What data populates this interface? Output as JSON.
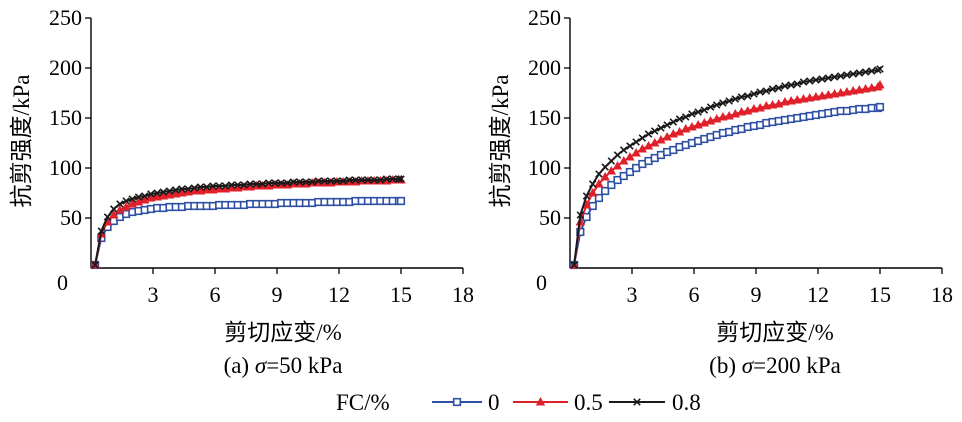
{
  "colors": {
    "fc_0": "#2e4fa3",
    "fc_0_5": "#e0202a",
    "fc_0_8": "#1a1a1a",
    "axis": "#000000"
  },
  "legend": {
    "title": "FC/%",
    "entries": [
      {
        "label": "0",
        "marker": "square-open",
        "color": "#2e4fa3"
      },
      {
        "label": "0.5",
        "marker": "triangle-filled",
        "color": "#e0202a"
      },
      {
        "label": "0.8",
        "marker": "x-cross",
        "color": "#1a1a1a"
      }
    ],
    "placement": "bottom-center"
  },
  "chart_data": [
    {
      "type": "line",
      "caption_prefix": "(a) ",
      "caption_sigma": "σ",
      "caption_suffix": "=50 kPa",
      "xlabel": "剪切应变/%",
      "ylabel": "抗剪强度/kPa",
      "xlim": [
        0,
        18
      ],
      "ylim": [
        0,
        250
      ],
      "xticks": [
        3,
        6,
        9,
        12,
        15,
        18
      ],
      "yticks": [
        50,
        100,
        150,
        200,
        250
      ],
      "origin_label": "0",
      "grid": false,
      "series": [
        {
          "name": "0",
          "x": [
            0.2,
            0.5,
            0.8,
            1.1,
            1.4,
            1.7,
            2.0,
            2.3,
            2.6,
            2.9,
            3.2,
            3.5,
            3.8,
            4.1,
            4.4,
            4.7,
            5.0,
            5.3,
            5.6,
            5.9,
            6.2,
            6.5,
            6.8,
            7.1,
            7.4,
            7.7,
            8.0,
            8.3,
            8.6,
            8.9,
            9.2,
            9.5,
            9.8,
            10.1,
            10.4,
            10.7,
            11.0,
            11.3,
            11.6,
            11.9,
            12.2,
            12.5,
            12.8,
            13.1,
            13.4,
            13.7,
            14.0,
            14.3,
            14.6,
            14.9,
            15.0
          ],
          "y": [
            3,
            30,
            41,
            47,
            51,
            54,
            56,
            57,
            58,
            59,
            60,
            60,
            61,
            61,
            61,
            62,
            62,
            62,
            62,
            62,
            63,
            63,
            63,
            63,
            63,
            64,
            64,
            64,
            64,
            64,
            65,
            65,
            65,
            65,
            65,
            65,
            66,
            66,
            66,
            66,
            66,
            66,
            67,
            67,
            67,
            67,
            67,
            67,
            67,
            67,
            67
          ]
        },
        {
          "name": "0.5",
          "x": [
            0.2,
            0.5,
            0.8,
            1.1,
            1.4,
            1.7,
            2.0,
            2.3,
            2.6,
            2.9,
            3.2,
            3.5,
            3.8,
            4.1,
            4.4,
            4.7,
            5.0,
            5.3,
            5.6,
            5.9,
            6.2,
            6.5,
            6.8,
            7.1,
            7.4,
            7.7,
            8.0,
            8.3,
            8.6,
            8.9,
            9.2,
            9.5,
            9.8,
            10.1,
            10.4,
            10.7,
            11.0,
            11.3,
            11.6,
            11.9,
            12.2,
            12.5,
            12.8,
            13.1,
            13.4,
            13.7,
            14.0,
            14.3,
            14.6,
            14.9,
            15.0
          ],
          "y": [
            3,
            34,
            46,
            53,
            58,
            61,
            64,
            66,
            68,
            70,
            71,
            72,
            73,
            74,
            75,
            76,
            77,
            77,
            78,
            78,
            79,
            79,
            80,
            80,
            81,
            81,
            82,
            82,
            82,
            83,
            83,
            83,
            84,
            84,
            84,
            85,
            85,
            85,
            85,
            86,
            86,
            86,
            86,
            87,
            87,
            87,
            87,
            87,
            88,
            88,
            88
          ]
        },
        {
          "name": "0.8",
          "x": [
            0.2,
            0.5,
            0.8,
            1.1,
            1.4,
            1.7,
            2.0,
            2.3,
            2.6,
            2.9,
            3.2,
            3.5,
            3.8,
            4.1,
            4.4,
            4.7,
            5.0,
            5.3,
            5.6,
            5.9,
            6.2,
            6.5,
            6.8,
            7.1,
            7.4,
            7.7,
            8.0,
            8.3,
            8.6,
            8.9,
            9.2,
            9.5,
            9.8,
            10.1,
            10.4,
            10.7,
            11.0,
            11.3,
            11.6,
            11.9,
            12.2,
            12.5,
            12.8,
            13.1,
            13.4,
            13.7,
            14.0,
            14.3,
            14.6,
            14.9,
            15.0
          ],
          "y": [
            3,
            37,
            51,
            59,
            64,
            67,
            69,
            71,
            72,
            74,
            75,
            76,
            77,
            78,
            79,
            79,
            80,
            81,
            81,
            82,
            82,
            82,
            83,
            83,
            83,
            84,
            84,
            84,
            85,
            85,
            85,
            85,
            86,
            86,
            86,
            86,
            87,
            87,
            87,
            87,
            87,
            88,
            88,
            88,
            88,
            88,
            88,
            89,
            89,
            89,
            89
          ]
        }
      ]
    },
    {
      "type": "line",
      "caption_prefix": "(b) ",
      "caption_sigma": "σ",
      "caption_suffix": "=200 kPa",
      "xlabel": "剪切应变/%",
      "ylabel": "抗剪强度/kPa",
      "xlim": [
        0,
        18
      ],
      "ylim": [
        0,
        250
      ],
      "xticks": [
        3,
        6,
        9,
        12,
        15,
        18
      ],
      "yticks": [
        50,
        100,
        150,
        200,
        250
      ],
      "origin_label": "0",
      "grid": false,
      "series": [
        {
          "name": "0",
          "x": [
            0.2,
            0.5,
            0.8,
            1.1,
            1.4,
            1.7,
            2.0,
            2.3,
            2.6,
            2.9,
            3.2,
            3.5,
            3.8,
            4.1,
            4.4,
            4.7,
            5.0,
            5.3,
            5.6,
            5.9,
            6.2,
            6.5,
            6.8,
            7.1,
            7.4,
            7.7,
            8.0,
            8.3,
            8.6,
            8.9,
            9.2,
            9.5,
            9.8,
            10.1,
            10.4,
            10.7,
            11.0,
            11.3,
            11.6,
            11.9,
            12.2,
            12.5,
            12.8,
            13.1,
            13.4,
            13.7,
            14.0,
            14.3,
            14.6,
            14.9,
            15.0
          ],
          "y": [
            3,
            36,
            51,
            62,
            70,
            77,
            83,
            88,
            92,
            96,
            100,
            104,
            107,
            110,
            113,
            116,
            118,
            121,
            123,
            125,
            127,
            129,
            131,
            133,
            135,
            136,
            138,
            139,
            141,
            142,
            143,
            145,
            146,
            147,
            148,
            149,
            150,
            151,
            152,
            153,
            154,
            155,
            156,
            157,
            157,
            158,
            159,
            159,
            160,
            160,
            161
          ]
        },
        {
          "name": "0.5",
          "x": [
            0.2,
            0.5,
            0.8,
            1.1,
            1.4,
            1.7,
            2.0,
            2.3,
            2.6,
            2.9,
            3.2,
            3.5,
            3.8,
            4.1,
            4.4,
            4.7,
            5.0,
            5.3,
            5.6,
            5.9,
            6.2,
            6.5,
            6.8,
            7.1,
            7.4,
            7.7,
            8.0,
            8.3,
            8.6,
            8.9,
            9.2,
            9.5,
            9.8,
            10.1,
            10.4,
            10.7,
            11.0,
            11.3,
            11.6,
            11.9,
            12.2,
            12.5,
            12.8,
            13.1,
            13.4,
            13.7,
            14.0,
            14.3,
            14.6,
            14.9,
            15.0
          ],
          "y": [
            3,
            46,
            63,
            75,
            84,
            91,
            97,
            102,
            107,
            111,
            115,
            119,
            122,
            125,
            128,
            131,
            134,
            136,
            139,
            141,
            143,
            145,
            147,
            149,
            151,
            152,
            154,
            156,
            157,
            159,
            160,
            162,
            163,
            164,
            166,
            167,
            168,
            169,
            170,
            171,
            172,
            173,
            174,
            175,
            176,
            177,
            178,
            179,
            180,
            181,
            183
          ]
        },
        {
          "name": "0.8",
          "x": [
            0.2,
            0.5,
            0.8,
            1.1,
            1.4,
            1.7,
            2.0,
            2.3,
            2.6,
            2.9,
            3.2,
            3.5,
            3.8,
            4.1,
            4.4,
            4.7,
            5.0,
            5.3,
            5.6,
            5.9,
            6.2,
            6.5,
            6.8,
            7.1,
            7.4,
            7.7,
            8.0,
            8.3,
            8.6,
            8.9,
            9.2,
            9.5,
            9.8,
            10.1,
            10.4,
            10.7,
            11.0,
            11.3,
            11.6,
            11.9,
            12.2,
            12.5,
            12.8,
            13.1,
            13.4,
            13.7,
            14.0,
            14.3,
            14.6,
            14.9,
            15.0
          ],
          "y": [
            3,
            53,
            72,
            84,
            94,
            101,
            107,
            113,
            118,
            122,
            126,
            130,
            134,
            137,
            140,
            143,
            146,
            149,
            151,
            154,
            156,
            158,
            161,
            163,
            165,
            167,
            169,
            171,
            172,
            174,
            176,
            177,
            179,
            180,
            182,
            183,
            184,
            186,
            187,
            188,
            189,
            190,
            191,
            192,
            193,
            194,
            195,
            196,
            197,
            198,
            199
          ]
        }
      ]
    }
  ]
}
